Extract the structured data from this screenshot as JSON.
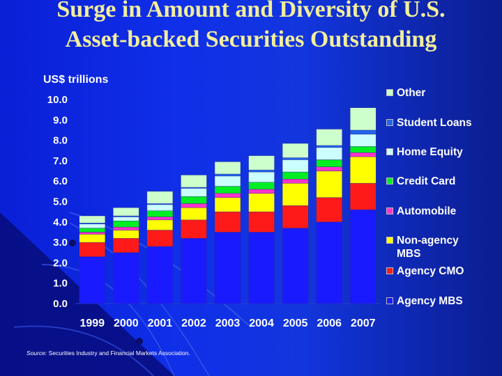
{
  "title": "Surge in Amount and Diversity of U.S. Asset-backed Securities Outstanding",
  "ylabel": "US$ trillions",
  "source_label": "Source:",
  "source_text": "Securities Industry and Financial Markets Association.",
  "colors": {
    "background": "#1030e0",
    "title": "#f2ee9c"
  },
  "chart_data": {
    "type": "bar",
    "stacked": true,
    "title": "Surge in Amount and Diversity of U.S. Asset-backed Securities Outstanding",
    "ylabel": "US$ trillions",
    "xlabel": "",
    "categories": [
      "1999",
      "2000",
      "2001",
      "2002",
      "2003",
      "2004",
      "2005",
      "2006",
      "2007"
    ],
    "yticks": [
      "0.0",
      "1.0",
      "2.0",
      "3.0",
      "4.0",
      "5.0",
      "6.0",
      "7.0",
      "8.0",
      "9.0",
      "10.0"
    ],
    "ylim": [
      0,
      10
    ],
    "grid": false,
    "legend_position": "right",
    "series": [
      {
        "name": "Agency MBS",
        "color": "#1a1aff",
        "values": [
          2.3,
          2.5,
          2.8,
          3.2,
          3.5,
          3.5,
          3.7,
          4.0,
          4.6
        ]
      },
      {
        "name": "Agency CMO",
        "color": "#ff1a1a",
        "values": [
          0.7,
          0.7,
          0.8,
          0.9,
          1.0,
          1.0,
          1.1,
          1.2,
          1.3
        ]
      },
      {
        "name": "Non-agency MBS",
        "color": "#ffff00",
        "values": [
          0.4,
          0.4,
          0.5,
          0.6,
          0.7,
          0.9,
          1.1,
          1.3,
          1.3
        ]
      },
      {
        "name": "Automobile",
        "color": "#ff33cc",
        "values": [
          0.1,
          0.15,
          0.15,
          0.2,
          0.2,
          0.2,
          0.2,
          0.2,
          0.2
        ]
      },
      {
        "name": "Credit Card",
        "color": "#00ee22",
        "values": [
          0.2,
          0.3,
          0.3,
          0.35,
          0.35,
          0.35,
          0.35,
          0.35,
          0.3
        ]
      },
      {
        "name": "Home Equity",
        "color": "#ccffff",
        "values": [
          0.2,
          0.2,
          0.3,
          0.4,
          0.5,
          0.5,
          0.6,
          0.6,
          0.6
        ]
      },
      {
        "name": "Student Loans",
        "color": "#2266ee",
        "values": [
          0.05,
          0.05,
          0.05,
          0.05,
          0.1,
          0.1,
          0.1,
          0.1,
          0.2
        ]
      },
      {
        "name": "Other",
        "color": "#ccffcc",
        "values": [
          0.35,
          0.4,
          0.6,
          0.6,
          0.6,
          0.7,
          0.7,
          0.8,
          1.1
        ]
      }
    ],
    "legend_order": [
      "Other",
      "Student Loans",
      "Home Equity",
      "Credit Card",
      "Automobile",
      "Non-agency MBS",
      "Agency CMO",
      "Agency MBS"
    ]
  }
}
